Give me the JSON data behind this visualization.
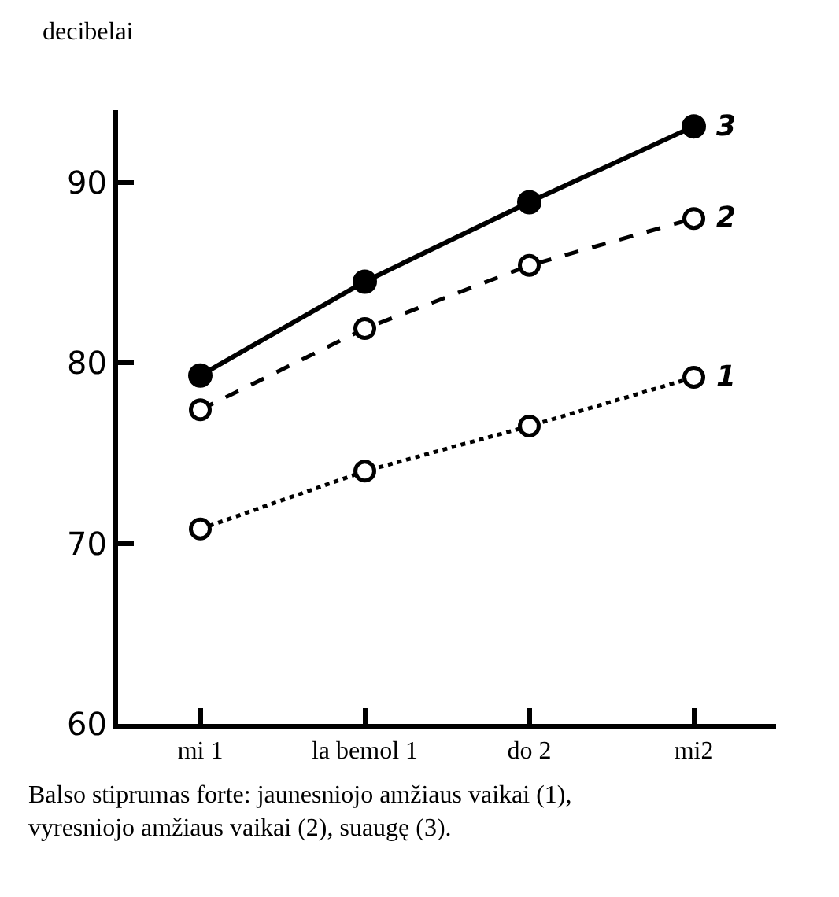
{
  "chart_data": {
    "type": "line",
    "ylabel": "decibelai",
    "categories": [
      "mi 1",
      "la bemol 1",
      "do 2",
      "mi2"
    ],
    "series": [
      {
        "name": "3",
        "color": "#000000",
        "values": [
          79.3,
          84.5,
          88.9,
          93.1
        ],
        "line_style": "solid"
      },
      {
        "name": "2",
        "color": "#000000",
        "values": [
          77.4,
          81.9,
          85.4,
          88.0
        ],
        "line_style": "dashed"
      },
      {
        "name": "1",
        "color": "#000000",
        "values": [
          70.8,
          74.0,
          76.5,
          79.2
        ],
        "line_style": "dotted"
      }
    ],
    "ylim": [
      60,
      94
    ],
    "yticks": [
      60,
      70,
      80,
      90
    ],
    "legend": false,
    "marker": "circle",
    "annotations": [
      "Balso stiprumas forte: jaunesniojo amžiaus vaikai (1), vyresniojo amžiaus vaikai (2), suaugę (3)."
    ]
  }
}
